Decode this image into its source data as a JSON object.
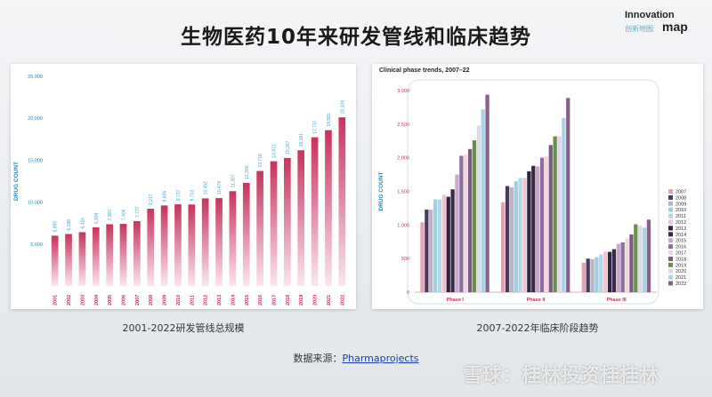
{
  "slide_title": "生物医药10年来研发管线和临床趋势",
  "logo": {
    "line1": "Innovation",
    "line2": "map",
    "sub": "创新地图"
  },
  "caption_left": "2001-2022研发管线总规模",
  "caption_right": "2007-2022年临床阶段趋势",
  "source_label": "数据来源：",
  "source_link": "Pharmaprojects",
  "watermark": "雪球：桂林投资桂桂林",
  "colors": {
    "pipeline_bar_top": "#c8325e",
    "pipeline_bar_bottom": "#fbe7ee",
    "axis_text": "#1f8fb8",
    "label_text": "#4aa3c8"
  },
  "chart_data": [
    {
      "type": "bar",
      "title": "",
      "xlabel": "",
      "ylabel": "DRUG COUNT",
      "ylim": [
        0,
        25000
      ],
      "yticks": [
        5000,
        10000,
        15000,
        20000,
        25000
      ],
      "ytick_labels": [
        "5,000",
        "10,000",
        "15,000",
        "20,000",
        "25,000"
      ],
      "grid": false,
      "categories": [
        "2001",
        "2002",
        "2003",
        "2004",
        "2005",
        "2006",
        "2007",
        "2008",
        "2009",
        "2010",
        "2011",
        "2012",
        "2013",
        "2014",
        "2015",
        "2016",
        "2017",
        "2018",
        "2019",
        "2020",
        "2021",
        "2022"
      ],
      "values": [
        5995,
        6198,
        6416,
        6994,
        7360,
        7406,
        7737,
        9217,
        9605,
        9737,
        9713,
        10452,
        10479,
        11307,
        12300,
        13718,
        14872,
        15267,
        16181,
        17737,
        18582,
        20109
      ],
      "data_labels": [
        "5,995",
        "6,198",
        "6,416",
        "6,994",
        "7,360",
        "7,406",
        "7,737",
        "9,217",
        "9,605",
        "9,737",
        "9,713",
        "10,452",
        "10,479",
        "11,307",
        "12,300",
        "13,718",
        "14,872",
        "15,267",
        "16,181",
        "17,737",
        "18,582",
        "20,109"
      ]
    },
    {
      "type": "bar",
      "title": "Clinical phase trends, 2007–22",
      "xlabel": "",
      "ylabel": "DRUG COUNT",
      "ylim": [
        0,
        3000
      ],
      "yticks": [
        0,
        500,
        1000,
        1500,
        2000,
        2500,
        3000
      ],
      "ytick_labels": [
        "0",
        "500",
        "1,000",
        "1,500",
        "2,000",
        "2,500",
        "3,000"
      ],
      "grid": false,
      "legend_position": "right",
      "categories": [
        "Phase I",
        "Phase II",
        "Phase III"
      ],
      "series": [
        {
          "name": "2007",
          "color": "#e8a0b5",
          "values": [
            1040,
            1340,
            440
          ]
        },
        {
          "name": "2008",
          "color": "#4a3b5c",
          "values": [
            1230,
            1580,
            500
          ]
        },
        {
          "name": "2009",
          "color": "#b8b4c4",
          "values": [
            1230,
            1560,
            490
          ]
        },
        {
          "name": "2010",
          "color": "#9fd0e0",
          "values": [
            1380,
            1650,
            520
          ]
        },
        {
          "name": "2011",
          "color": "#b0d8ea",
          "values": [
            1380,
            1700,
            560
          ]
        },
        {
          "name": "2012",
          "color": "#f2c4d2",
          "values": [
            1450,
            1700,
            600
          ]
        },
        {
          "name": "2013",
          "color": "#2c2440",
          "values": [
            1420,
            1800,
            600
          ]
        },
        {
          "name": "2014",
          "color": "#3a2a45",
          "values": [
            1530,
            1880,
            640
          ]
        },
        {
          "name": "2015",
          "color": "#c9a8c9",
          "values": [
            1750,
            1870,
            720
          ]
        },
        {
          "name": "2016",
          "color": "#8a6fa0",
          "values": [
            2030,
            2000,
            740
          ]
        },
        {
          "name": "2017",
          "color": "#f3d4e0",
          "values": [
            2050,
            2020,
            800
          ]
        },
        {
          "name": "2018",
          "color": "#7a5d7e",
          "values": [
            2130,
            2190,
            860
          ]
        },
        {
          "name": "2019",
          "color": "#6b8f4a",
          "values": [
            2260,
            2320,
            1010
          ]
        },
        {
          "name": "2020",
          "color": "#ddd8e6",
          "values": [
            2480,
            2320,
            990
          ]
        },
        {
          "name": "2021",
          "color": "#a8d4e4",
          "values": [
            2720,
            2590,
            960
          ]
        },
        {
          "name": "2022",
          "color": "#8a5f8c",
          "values": [
            2940,
            2890,
            1080
          ]
        }
      ]
    }
  ]
}
